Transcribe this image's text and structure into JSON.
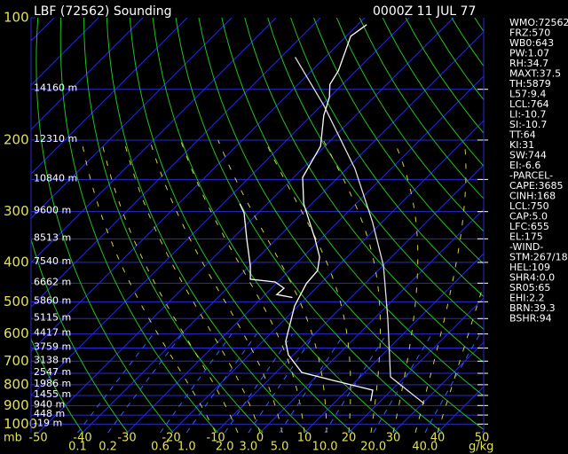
{
  "chart_data": {
    "type": "skewt",
    "title": "LBF (72562) Sounding",
    "date": "0000Z 11 JUL 77",
    "y_unit": "mb",
    "ylim": [
      100,
      1050
    ],
    "yticks": [
      100,
      200,
      300,
      400,
      500,
      600,
      700,
      800,
      900,
      1000
    ],
    "xticks": [
      -50,
      -40,
      -30,
      -20,
      -10,
      0,
      10,
      20,
      30,
      40,
      50
    ],
    "levels": [
      {
        "p": 150,
        "height": "14160 m"
      },
      {
        "p": 200,
        "height": "12310 m"
      },
      {
        "p": 250,
        "height": "10840 m"
      },
      {
        "p": 300,
        "height": "9600 m"
      },
      {
        "p": 350,
        "height": "8513 m"
      },
      {
        "p": 400,
        "height": "7540 m"
      },
      {
        "p": 450,
        "height": "6662 m"
      },
      {
        "p": 500,
        "height": "5860 m"
      },
      {
        "p": 550,
        "height": "5115 m"
      },
      {
        "p": 600,
        "height": "4417 m"
      },
      {
        "p": 650,
        "height": "3759 m"
      },
      {
        "p": 700,
        "height": "3138 m"
      },
      {
        "p": 750,
        "height": "2547 m"
      },
      {
        "p": 800,
        "height": "1986 m"
      },
      {
        "p": 850,
        "height": "1455 m"
      },
      {
        "p": 900,
        "height": "940 m"
      },
      {
        "p": 950,
        "height": "448 m"
      },
      {
        "p": 1000,
        "height": "-19 m"
      }
    ],
    "mixing_ratios": [
      0.1,
      0.2,
      0.6,
      {
        "value": 1,
        "label": "1.0"
      },
      {
        "value": 2,
        "label": "2.0"
      },
      {
        "value": 3,
        "label": "3.0"
      },
      {
        "value": 5,
        "label": "5.0"
      },
      {
        "value": 10,
        "label": "10.0"
      },
      {
        "value": 20,
        "label": "20.0"
      },
      {
        "value": 40,
        "label": "40.0"
      }
    ],
    "mixing_ratio_unit": "g/kg",
    "series": [
      {
        "color": "#ffffff",
        "p": [
          104,
          111,
          135,
          146,
          157,
          174,
          207,
          247,
          287,
          351,
          388,
          419,
          451,
          512,
          626,
          675,
          746,
          785,
          825,
          877
        ],
        "t": [
          -68,
          -69,
          -64,
          -62.8,
          -60,
          -57.2,
          -51,
          -48,
          -41.8,
          -31.2,
          -26.2,
          -23.6,
          -23.2,
          -20.8,
          -14.8,
          -11.2,
          -4.2,
          5.8,
          15.8,
          17.8
        ]
      },
      {
        "color": "#ffffff",
        "p": [
          287,
          302,
          351,
          408,
          440,
          447,
          463,
          480,
          488
        ],
        "t": [
          -56.2,
          -53.2,
          -46.6,
          -39.8,
          -36.8,
          -30.6,
          -27.2,
          -27.4,
          -23.2
        ]
      },
      {
        "color": "#e0e0e0",
        "p": [
          125,
          165,
          235,
          318,
          408,
          552,
          765,
          890
        ],
        "t": [
          -76.8,
          -59.2,
          -38.2,
          -22.2,
          -9.8,
          3.2,
          16.8,
          30.4
        ]
      }
    ],
    "indices": [
      "WMO:72562",
      "FRZ:570",
      "WB0:643",
      "PW:1.07",
      "RH:34.7",
      "MAXT:37.5",
      "TH:5879",
      "L57:9.4",
      "LCL:764",
      "LI:-10.7",
      "SI:-10.7",
      "TT:64",
      "KI:31",
      "SW:744",
      "EI:-6.6",
      "-PARCEL-",
      "CAPE:3685",
      "CINH:168",
      "LCL:750",
      "CAP:5.0",
      "LFC:655",
      "EL:175",
      "-WIND-",
      "STM:267/18",
      "HEL:109",
      "SHR4:0.0",
      "SR05:65",
      "EHI:2.2",
      "BRN:39.3",
      "BSHR:94"
    ]
  }
}
